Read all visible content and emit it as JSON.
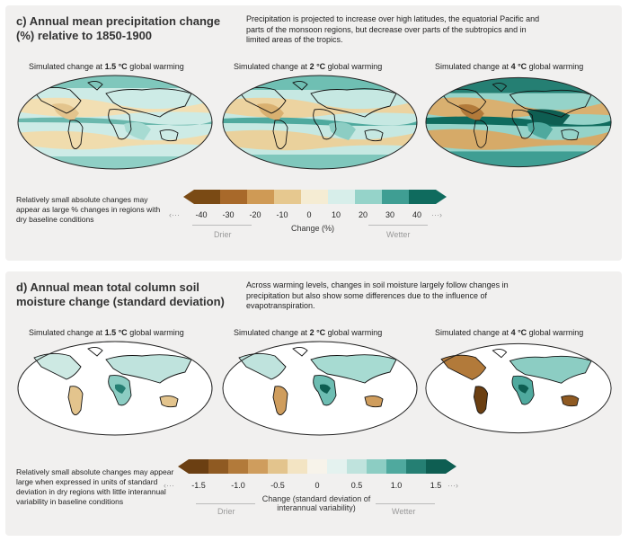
{
  "panel_c": {
    "title": "c) Annual mean precipitation change (%) relative to 1850-1900",
    "description": "Precipitation is projected to increase over high latitudes, the equatorial Pacific and parts of the monsoon regions, but decrease over parts of the subtropics and in limited areas of the tropics.",
    "maps": [
      {
        "prefix": "Simulated change at ",
        "level": "1.5 °C",
        "suffix": " global warming"
      },
      {
        "prefix": "Simulated change at ",
        "level": "2 °C",
        "suffix": " global warming"
      },
      {
        "prefix": "Simulated change at ",
        "level": "4 °C",
        "suffix": " global warming"
      }
    ],
    "note": "Relatively small absolute changes may appear as large % changes in regions with dry baseline conditions",
    "legend": {
      "ticks": [
        "-40",
        "-30",
        "-20",
        "-10",
        "0",
        "10",
        "20",
        "30",
        "40"
      ],
      "left_dots": "‹···",
      "right_dots": "···›",
      "unit": "Change (%)",
      "drier": "Drier",
      "wetter": "Wetter",
      "colors": [
        "#7a4a14",
        "#a8692a",
        "#cf9a55",
        "#e6c88f",
        "#f5ecd3",
        "#d7eeea",
        "#95d3c9",
        "#3f9e93",
        "#0f6b5e"
      ]
    }
  },
  "panel_d": {
    "title": "d) Annual mean total column soil moisture change (standard deviation)",
    "description": "Across warming levels, changes in soil moisture largely follow changes in precipitation but also show some differences due to the influence of evapotranspiration.",
    "maps": [
      {
        "prefix": "Simulated change at ",
        "level": "1.5 °C",
        "suffix": " global warming"
      },
      {
        "prefix": "Simulated change at ",
        "level": "2 °C",
        "suffix": " global warming"
      },
      {
        "prefix": "Simulated change at ",
        "level": "4 °C",
        "suffix": " global warming"
      }
    ],
    "note": "Relatively small absolute changes may appear large when expressed in units of standard deviation in dry regions with little interannual variability in baseline conditions",
    "legend": {
      "ticks": [
        "-1.5",
        "-1.0",
        "-0.5",
        "0",
        "0.5",
        "1.0",
        "1.5"
      ],
      "left_dots": "‹···",
      "right_dots": "···›",
      "unit": "Change (standard deviation of interannual variability)",
      "drier": "Drier",
      "wetter": "Wetter",
      "colors": [
        "#6b3f12",
        "#8f5a22",
        "#b27a3a",
        "#cf9d5d",
        "#e3c48d",
        "#f3e4c3",
        "#f7f3ea",
        "#e4f2ef",
        "#bfe3dd",
        "#8ccdc3",
        "#4fa99e",
        "#257f73",
        "#0e5e52"
      ]
    }
  }
}
